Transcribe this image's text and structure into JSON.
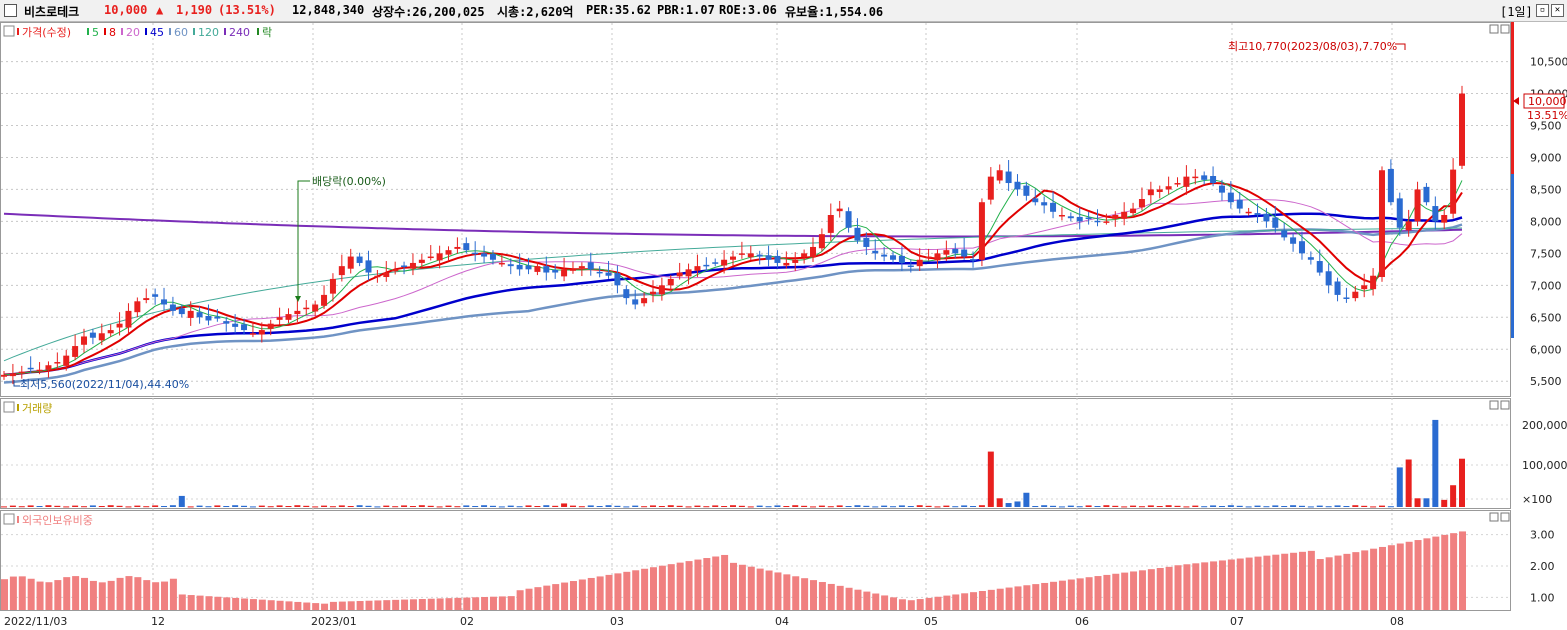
{
  "header": {
    "name": "비츠로테크",
    "price": "10,000",
    "change_arrow": "▲",
    "change": "1,190",
    "change_pct": "(13.51%)",
    "volume": "12,848,340",
    "shares": "상장수:26,200,025",
    "mktcap": "시총:2,620억",
    "per": "PER:35.62",
    "pbr": "PBR:1.07",
    "roe": "ROE:3.06",
    "reserve": "유보율:1,554.06",
    "period": "[1일]"
  },
  "legend": {
    "price": "가격(수정)",
    "ma5": "5",
    "ma8": "8",
    "ma20": "20",
    "ma45": "45",
    "ma60": "60",
    "ma120": "120",
    "ma240": "240",
    "drop": "락"
  },
  "annotations": {
    "high": "최고10,770(2023/08/03),7.70%",
    "low": "최저5,560(2022/11/04),44.40%",
    "dividend": "배당락(0.00%)",
    "cur_price": "10,000",
    "cur_pct": "13.51%"
  },
  "price_axis": [
    "10,500",
    "10,000",
    "9,500",
    "9,000",
    "8,500",
    "8,000",
    "7,500",
    "7,000",
    "6,500",
    "6,000",
    "5,500"
  ],
  "volume_panel": {
    "title": "거래량",
    "axis": [
      "200,000",
      "100,000",
      "×100"
    ]
  },
  "foreign_panel": {
    "title": "외국인보유비중",
    "axis": [
      "3.00",
      "2.00",
      "1.00"
    ]
  },
  "x_axis": [
    "2022/11/03",
    "12",
    "2023/01",
    "02",
    "03",
    "04",
    "05",
    "06",
    "07",
    "08"
  ],
  "colors": {
    "up": "#e8201e",
    "down": "#2a6bd1",
    "ma5": "#22b14c",
    "ma8": "#e00000",
    "ma20": "#cc66cc",
    "ma45": "#0000cc",
    "ma60": "#6f93c4",
    "ma120": "#44aa99",
    "ma240": "#7a2db8",
    "foreign": "#f08080"
  },
  "chart_data": {
    "type": "candlestick",
    "price_ylim": [
      5300,
      10900
    ],
    "closes": [
      5600,
      5620,
      5650,
      5700,
      5680,
      5750,
      5800,
      5900,
      6050,
      6200,
      6180,
      6250,
      6300,
      6400,
      6600,
      6750,
      6800,
      6820,
      6700,
      6600,
      6550,
      6600,
      6500,
      6450,
      6480,
      6400,
      6350,
      6300,
      6250,
      6300,
      6400,
      6500,
      6550,
      6600,
      6650,
      6700,
      6850,
      7100,
      7300,
      7450,
      7350,
      7200,
      7150,
      7200,
      7250,
      7300,
      7350,
      7400,
      7450,
      7500,
      7550,
      7600,
      7550,
      7500,
      7450,
      7400,
      7350,
      7300,
      7250,
      7250,
      7300,
      7200,
      7200,
      7250,
      7250,
      7300,
      7250,
      7200,
      7150,
      7000,
      6800,
      6700,
      6800,
      6900,
      7000,
      7100,
      7200,
      7250,
      7300,
      7300,
      7350,
      7400,
      7450,
      7500,
      7500,
      7450,
      7400,
      7350,
      7350,
      7400,
      7500,
      7600,
      7800,
      8100,
      8200,
      7900,
      7700,
      7600,
      7500,
      7450,
      7400,
      7350,
      7300,
      7400,
      7450,
      7500,
      7550,
      7500,
      7450,
      7400,
      8300,
      8700,
      8800,
      8600,
      8500,
      8400,
      8300,
      8250,
      8150,
      8100,
      8050,
      8000,
      8050,
      8000,
      8000,
      8100,
      8150,
      8200,
      8350,
      8500,
      8500,
      8550,
      8600,
      8700,
      8700,
      8650,
      8600,
      8450,
      8300,
      8200,
      8150,
      8100,
      8000,
      7900,
      7750,
      7650,
      7500,
      7400,
      7200,
      7000,
      6850,
      6800,
      6900,
      7000,
      7150,
      8800,
      8300,
      7900,
      8000,
      8500,
      8300,
      8000,
      8100,
      8810,
      10000
    ],
    "volume_ylim": [
      0,
      240000
    ],
    "foreign_ylim": [
      0.6,
      3.4
    ]
  }
}
